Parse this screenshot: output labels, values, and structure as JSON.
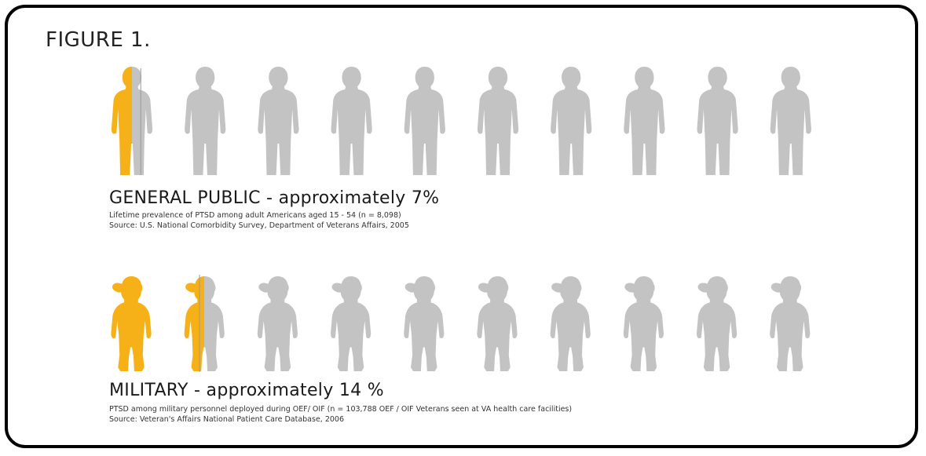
{
  "figure_label": "FIGURE 1.",
  "colors": {
    "highlight": "#f6b118",
    "base": "#c3c3c3",
    "divider": "#9a9a9a",
    "frame": "#000000"
  },
  "icons": {
    "public_icon": "standing-person-icon",
    "military_icon": "saluting-soldier-icon"
  },
  "chart_data": [
    {
      "type": "pictogram",
      "group": "general-public",
      "heading": "GENERAL PUBLIC - approximately 7%",
      "note_line1": "Lifetime prevalence of PTSD among adult Americans aged 15 - 54 (n = 8,098)",
      "note_line2": "Source: U.S. National Comorbidity Survey, Department of Veterans Affairs, 2005",
      "value_percent": 7,
      "icons_total": 10,
      "percent_per_icon": 10
    },
    {
      "type": "pictogram",
      "group": "military",
      "heading": "MILITARY - approximately 14 %",
      "note_line1": "PTSD among military personnel deployed during OEF/ OIF (n = 103,788 OEF / OIF Veterans seen at VA health care facilities)",
      "note_line2": "Source: Veteran's Affairs National Patient Care Database, 2006",
      "value_percent": 14,
      "icons_total": 10,
      "percent_per_icon": 10
    }
  ]
}
